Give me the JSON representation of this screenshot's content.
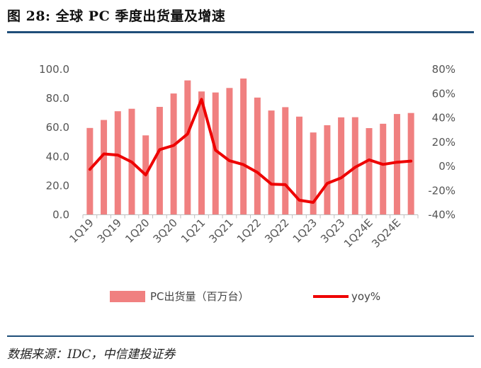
{
  "figure": {
    "title": "图 28: 全球 PC 季度出货量及增速",
    "source": "数据来源：IDC，中信建投证券"
  },
  "chart_data": {
    "type": "bar",
    "categories": [
      "1Q19",
      "2Q19",
      "3Q19",
      "4Q19",
      "1Q20",
      "2Q20",
      "3Q20",
      "4Q20",
      "1Q21",
      "2Q21",
      "3Q21",
      "4Q21",
      "1Q22",
      "2Q22",
      "3Q22",
      "4Q22",
      "1Q23",
      "2Q23",
      "3Q23",
      "4Q23",
      "1Q24E",
      "2Q24E",
      "3Q24E",
      "4Q24E"
    ],
    "x_tick_labels": [
      "1Q19",
      "3Q19",
      "1Q20",
      "3Q20",
      "1Q21",
      "3Q21",
      "1Q22",
      "3Q22",
      "1Q23",
      "3Q23",
      "1Q24E",
      "3Q24E"
    ],
    "series": [
      {
        "name": "PC出货量（百万台）",
        "type": "bar",
        "axis": "left",
        "color": "#f08080",
        "values": [
          59.7,
          65.2,
          71.2,
          72.9,
          54.6,
          74.2,
          83.4,
          92.4,
          84.8,
          84.1,
          87.2,
          93.7,
          80.6,
          71.7,
          74.0,
          67.5,
          56.6,
          61.6,
          67.0,
          67.1,
          59.6,
          62.6,
          69.3,
          70.0
        ]
      },
      {
        "name": "yoy%",
        "type": "line",
        "axis": "right",
        "color": "#ee0000",
        "values": [
          -2.5,
          10.2,
          9.3,
          3.5,
          -7.1,
          13.8,
          17.2,
          26.7,
          55.3,
          13.3,
          4.6,
          1.4,
          -5.0,
          -14.7,
          -15.1,
          -28.0,
          -29.8,
          -14.1,
          -9.5,
          -0.8,
          5.3,
          1.6,
          3.4,
          4.3
        ]
      }
    ],
    "y_left": {
      "ylim": [
        0,
        100
      ],
      "ticks": [
        "0.0",
        "20.0",
        "40.0",
        "60.0",
        "80.0",
        "100.0"
      ]
    },
    "y_right": {
      "ylim": [
        -40,
        80
      ],
      "ticks": [
        "-40%",
        "-20%",
        "0%",
        "20%",
        "40%",
        "60%",
        "80%"
      ]
    },
    "grid": false,
    "legend_position": "bottom"
  }
}
